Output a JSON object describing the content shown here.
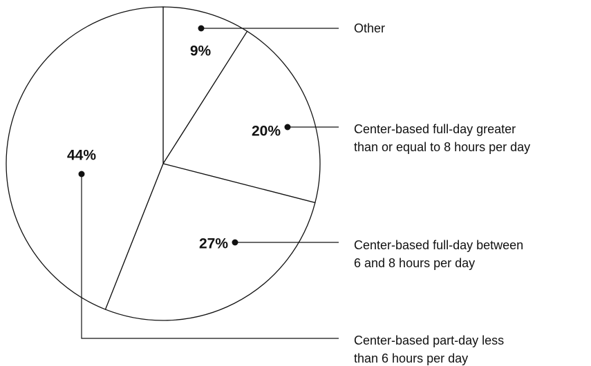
{
  "chart_data": {
    "type": "pie",
    "labels": [
      [
        "Other"
      ],
      [
        "Center-based full-day greater",
        "than or equal to 8 hours per day"
      ],
      [
        "Center-based full-day between",
        "6 and 8 hours per day"
      ],
      [
        "Center-based part-day less",
        "than 6 hours per day"
      ]
    ],
    "values": [
      9,
      20,
      27,
      44
    ],
    "value_labels": [
      "9%",
      "20%",
      "27%",
      "44%"
    ],
    "color": "#ffffff"
  }
}
